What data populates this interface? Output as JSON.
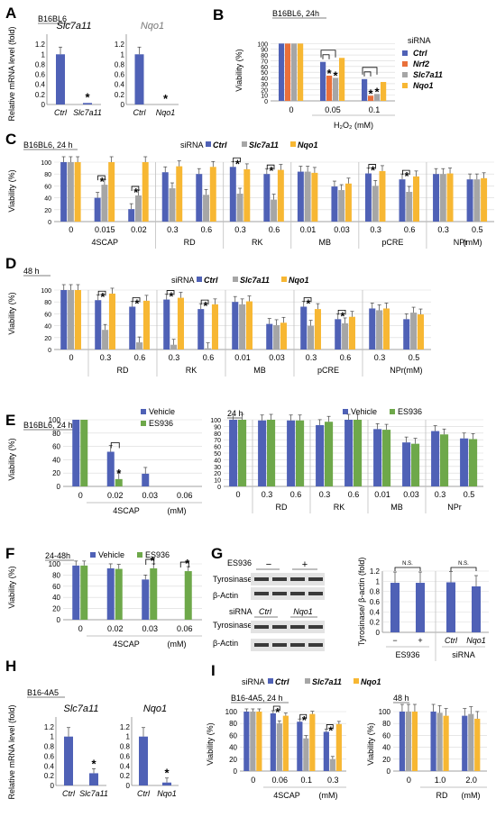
{
  "colors": {
    "ctrl": "#4f61b6",
    "nrf2": "#e9703a",
    "slc7a11": "#a6a6a6",
    "nqo1": "#f7b733",
    "vehicle": "#4f61b6",
    "es936": "#6ea84a",
    "blot_band": "#3a3a3a",
    "blot_bg": "#e3e3e3"
  },
  "legend": {
    "siRNA": "siRNA",
    "ctrl": "Ctrl",
    "nrf2": "Nrf2",
    "slc7a11": "Slc7a11",
    "nqo1": "Nqo1",
    "vehicle": "Vehicle",
    "es936": "ES936"
  },
  "chart_data": [
    {
      "panel": "A",
      "type": "bar",
      "title": "B16BL6",
      "ylabel": "Relative mRNA level (fold)",
      "ylim": [
        0,
        1.4
      ],
      "yticks": [
        0,
        0.2,
        0.4,
        0.6,
        0.8,
        1,
        1.2
      ],
      "groups": [
        {
          "gene": "Slc7a11",
          "categories": [
            "Ctrl",
            "Slc7a11"
          ],
          "values": [
            1.0,
            0.03
          ],
          "errors": [
            0.12,
            0.01
          ],
          "sig": [
            false,
            true
          ]
        },
        {
          "gene": "Nqo1",
          "categories": [
            "Ctrl",
            "Nqo1"
          ],
          "values": [
            1.0,
            0.0
          ],
          "errors": [
            0.1,
            0.0
          ],
          "sig": [
            false,
            true
          ]
        }
      ]
    },
    {
      "panel": "B",
      "type": "bar",
      "title": "B16BL6, 24h",
      "ylabel": "Viability (%)",
      "ylim": [
        0,
        110
      ],
      "yticks": [
        0,
        10,
        20,
        30,
        40,
        50,
        60,
        70,
        80,
        90,
        100
      ],
      "categories": [
        "0",
        "0.05",
        "0.1"
      ],
      "xgroup_label": "H₂O₂ (mM)",
      "series": [
        {
          "name": "Ctrl",
          "values": [
            100,
            68,
            38
          ]
        },
        {
          "name": "Nrf2",
          "values": [
            100,
            44,
            9
          ]
        },
        {
          "name": "Slc7a11",
          "values": [
            100,
            40,
            12
          ]
        },
        {
          "name": "Nqo1",
          "values": [
            100,
            75,
            33
          ]
        }
      ]
    },
    {
      "panel": "C",
      "type": "bar",
      "title": "B16BL6, 24 h",
      "ylabel": "Viability (%)",
      "ylim": [
        0,
        100
      ],
      "yticks": [
        0,
        20,
        40,
        60,
        80,
        100
      ],
      "groups": [
        {
          "name": "4SCAP",
          "doses": [
            "0",
            "0.015",
            "0.02"
          ],
          "values": [
            [
              100,
              100,
              100
            ],
            [
              40,
              62,
              100
            ],
            [
              21,
              44,
              100
            ]
          ],
          "sig": [
            false,
            true,
            true
          ]
        },
        {
          "name": "RD",
          "doses": [
            "0.3",
            "0.6"
          ],
          "values": [
            [
              83,
              56,
              93
            ],
            [
              80,
              45,
              92
            ]
          ],
          "sig": [
            false,
            false
          ]
        },
        {
          "name": "RK",
          "doses": [
            "0.3",
            "0.6"
          ],
          "values": [
            [
              92,
              47,
              88
            ],
            [
              80,
              37,
              87
            ]
          ],
          "sig": [
            true,
            true
          ]
        },
        {
          "name": "MB",
          "doses": [
            "0.01",
            "0.03"
          ],
          "values": [
            [
              84,
              84,
              82
            ],
            [
              59,
              53,
              64
            ]
          ],
          "sig": [
            false,
            false
          ]
        },
        {
          "name": "pCRE",
          "doses": [
            "0.3",
            "0.6"
          ],
          "values": [
            [
              81,
              60,
              85
            ],
            [
              71,
              50,
              76
            ]
          ],
          "sig": [
            true,
            true
          ]
        },
        {
          "name": "NPr",
          "doses": [
            "0.3",
            "0.5"
          ],
          "values": [
            [
              80,
              80,
              81
            ],
            [
              71,
              71,
              73
            ]
          ],
          "sig": [
            false,
            false
          ]
        }
      ],
      "unit": "(mM)"
    },
    {
      "panel": "D",
      "type": "bar",
      "title": "48 h",
      "ylabel": "Viability (%)",
      "ylim": [
        0,
        100
      ],
      "yticks": [
        0,
        20,
        40,
        60,
        80,
        100
      ],
      "groups": [
        {
          "name": "",
          "doses": [
            "0"
          ],
          "values": [
            [
              100,
              100,
              100
            ]
          ],
          "sig": [
            false
          ]
        },
        {
          "name": "RD",
          "doses": [
            "0.3",
            "0.6"
          ],
          "values": [
            [
              83,
              33,
              94
            ],
            [
              72,
              12,
              82
            ]
          ],
          "sig": [
            true,
            true
          ]
        },
        {
          "name": "RK",
          "doses": [
            "0.3",
            "0.6"
          ],
          "values": [
            [
              84,
              8,
              87
            ],
            [
              68,
              2,
              76
            ]
          ],
          "sig": [
            true,
            true
          ]
        },
        {
          "name": "MB",
          "doses": [
            "0.01",
            "0.03"
          ],
          "values": [
            [
              80,
              76,
              81
            ],
            [
              43,
              41,
              45
            ]
          ],
          "sig": [
            false,
            false
          ]
        },
        {
          "name": "pCRE",
          "doses": [
            "0.3",
            "0.6"
          ],
          "values": [
            [
              72,
              40,
              68
            ],
            [
              51,
              44,
              55
            ]
          ],
          "sig": [
            true,
            true
          ]
        },
        {
          "name": "NPr",
          "doses": [
            "0.3",
            "0.5"
          ],
          "values": [
            [
              69,
              66,
              69
            ],
            [
              51,
              62,
              59
            ]
          ],
          "sig": [
            false,
            false
          ]
        }
      ],
      "unit": "(mM)"
    },
    {
      "panel": "E1",
      "type": "bar",
      "title": "B16BL6, 24 h",
      "ylabel": "Viability (%)",
      "ylim": [
        0,
        100
      ],
      "yticks": [
        0,
        20,
        40,
        60,
        80,
        100
      ],
      "categories": [
        "0",
        "0.02",
        "0.03",
        "0.06"
      ],
      "xgroup_label": "4SCAP",
      "unit": "(mM)",
      "series": [
        {
          "name": "Vehicle",
          "values": [
            100,
            52,
            19,
            0
          ]
        },
        {
          "name": "ES936",
          "values": [
            100,
            11,
            0,
            0
          ]
        }
      ],
      "sig": [
        false,
        true,
        false,
        false
      ]
    },
    {
      "panel": "E2",
      "type": "bar",
      "title": "24 h",
      "ylim": [
        0,
        100
      ],
      "yticks": [
        0,
        10,
        20,
        30,
        40,
        50,
        60,
        70,
        80,
        90,
        100
      ],
      "groups": [
        {
          "name": "",
          "doses": [
            "0"
          ],
          "values": [
            [
              100,
              100
            ]
          ]
        },
        {
          "name": "RD",
          "doses": [
            "0.3",
            "0.6"
          ],
          "values": [
            [
              99,
              100
            ],
            [
              99,
              99
            ]
          ]
        },
        {
          "name": "RK",
          "doses": [
            "0.3",
            "0.6"
          ],
          "values": [
            [
              92,
              97
            ],
            [
              100,
              100
            ]
          ]
        },
        {
          "name": "MB",
          "doses": [
            "0.01",
            "0.03"
          ],
          "values": [
            [
              86,
              85
            ],
            [
              66,
              64
            ]
          ]
        },
        {
          "name": "NPr",
          "doses": [
            "0.3",
            "0.5"
          ],
          "values": [
            [
              83,
              78
            ],
            [
              72,
              71
            ]
          ]
        }
      ]
    },
    {
      "panel": "F",
      "type": "bar",
      "title": "24-48h",
      "ylabel": "Viability (%)",
      "ylim": [
        0,
        100
      ],
      "yticks": [
        0,
        20,
        40,
        60,
        80,
        100
      ],
      "categories": [
        "0",
        "0.02",
        "0.03",
        "0.06"
      ],
      "xgroup_label": "4SCAP",
      "unit": "(mM)",
      "series": [
        {
          "name": "Vehicle",
          "values": [
            97,
            92,
            72,
            0
          ]
        },
        {
          "name": "ES936",
          "values": [
            97,
            91,
            92,
            87
          ]
        }
      ],
      "sig": [
        false,
        false,
        true,
        true
      ]
    },
    {
      "panel": "G",
      "type": "bar",
      "ylabel": "Tyrosinase/ β-actin (fold)",
      "ylim": [
        0,
        1.2
      ],
      "yticks": [
        0,
        0.2,
        0.4,
        0.6,
        0.8,
        1,
        1.2
      ],
      "groups": [
        {
          "label": "ES936",
          "categories": [
            "−",
            "+"
          ],
          "values": [
            0.97,
            0.97
          ],
          "sig_text": "N.S."
        },
        {
          "label": "siRNA",
          "categories": [
            "Ctrl",
            "Nqo1"
          ],
          "values": [
            0.98,
            0.9
          ],
          "sig_text": "N.S."
        }
      ]
    },
    {
      "panel": "H",
      "type": "bar",
      "title": "B16-4A5",
      "ylabel": "Relative mRNA level (fold)",
      "ylim": [
        0,
        1.4
      ],
      "yticks": [
        0,
        0.2,
        0.4,
        0.6,
        0.8,
        1,
        1.2
      ],
      "groups": [
        {
          "gene": "Slc7a11",
          "categories": [
            "Ctrl",
            "Slc7a11"
          ],
          "values": [
            1.0,
            0.25
          ],
          "sig": [
            false,
            true
          ]
        },
        {
          "gene": "Nqo1",
          "categories": [
            "Ctrl",
            "Nqo1"
          ],
          "values": [
            1.0,
            0.06
          ],
          "sig": [
            false,
            true
          ]
        }
      ]
    },
    {
      "panel": "I1",
      "type": "bar",
      "title": "B16-4A5, 24 h",
      "ylabel": "Viability (%)",
      "ylim": [
        0,
        100
      ],
      "yticks": [
        0,
        20,
        40,
        60,
        80,
        100
      ],
      "categories": [
        "0",
        "0.06",
        "0.1",
        "0.3"
      ],
      "xgroup_label": "4SCAP",
      "unit": "(mM)",
      "series": [
        {
          "name": "Ctrl",
          "values": [
            100,
            97,
            83,
            66
          ]
        },
        {
          "name": "Slc7a11",
          "values": [
            100,
            80,
            55,
            20
          ]
        },
        {
          "name": "Nqo1",
          "values": [
            100,
            93,
            96,
            79
          ]
        }
      ],
      "sig": [
        false,
        true,
        true,
        true
      ]
    },
    {
      "panel": "I2",
      "type": "bar",
      "title": "48 h",
      "ylabel": "Viability (%)",
      "ylim": [
        0,
        100
      ],
      "yticks": [
        0,
        20,
        40,
        60,
        80,
        100
      ],
      "categories": [
        "0",
        "1.0",
        "2.0"
      ],
      "xgroup_label": "RD",
      "unit": "(mM)",
      "series": [
        {
          "name": "Ctrl",
          "values": [
            100,
            100,
            93
          ]
        },
        {
          "name": "Slc7a11",
          "values": [
            100,
            98,
            96
          ]
        },
        {
          "name": "Nqo1",
          "values": [
            100,
            93,
            88
          ]
        }
      ]
    }
  ],
  "blots": {
    "es936_label": "ES936",
    "minus": "−",
    "plus": "+",
    "tyrosinase": "Tyrosinase",
    "actin": "β-Actin",
    "sirna_label": "siRNA",
    "ctrl": "Ctrl",
    "nqo1": "Nqo1"
  },
  "panel_letters": [
    "A",
    "B",
    "C",
    "D",
    "E",
    "F",
    "G",
    "H",
    "I"
  ],
  "h2o2_label": "H₂O₂ (mM)"
}
